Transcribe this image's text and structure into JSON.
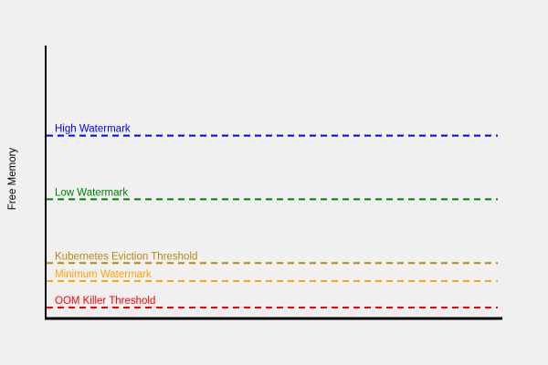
{
  "chart_data": {
    "type": "line",
    "title": "",
    "xlabel": "",
    "ylabel": "Free Memory",
    "x_tick_labels": [],
    "y_tick_labels": [],
    "grid": false,
    "legend_position": "none",
    "background_color": "#f0f0f0",
    "axis_color": "#000000",
    "y_axis_range_note": "no numeric ticks shown; levels are fractions of axis height from bottom",
    "series": [
      {
        "name": "High Watermark",
        "style": "dashed",
        "color": "#0000ff",
        "level": 0.67
      },
      {
        "name": "Low Watermark",
        "style": "dashed",
        "color": "#008000",
        "level": 0.437
      },
      {
        "name": "Kubernetes Eviction Threshold",
        "style": "dashed",
        "color": "#b8860b",
        "level": 0.203
      },
      {
        "name": "Minimum Watermark",
        "style": "dashed",
        "color": "#ffa500",
        "level": 0.137
      },
      {
        "name": "OOM Killer Threshold",
        "style": "dashed",
        "color": "#ff0000",
        "level": 0.04
      }
    ]
  }
}
